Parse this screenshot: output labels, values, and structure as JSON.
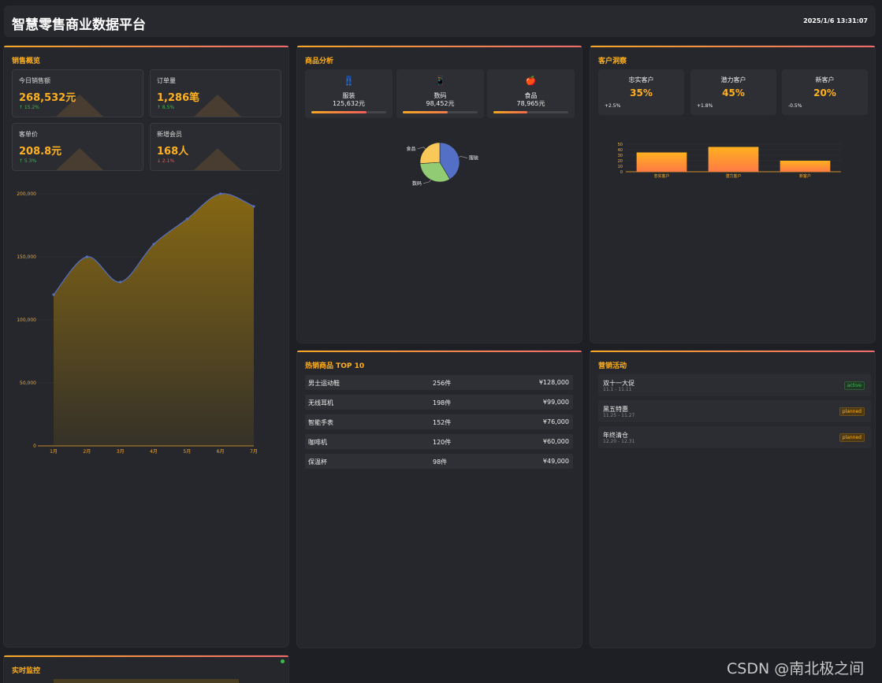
{
  "header": {
    "title": "智慧零售商业数据平台",
    "time": "2025/1/6 13:31:07"
  },
  "sales": {
    "title": "销售概览",
    "cards": [
      {
        "label": "今日销售额",
        "value": "268,532元",
        "change": "↑ 15.2%",
        "dir": "up"
      },
      {
        "label": "订单量",
        "value": "1,286笔",
        "change": "↑ 8.5%",
        "dir": "up"
      },
      {
        "label": "客单价",
        "value": "208.8元",
        "change": "↑ 5.3%",
        "dir": "up"
      },
      {
        "label": "新增会员",
        "value": "168人",
        "change": "↓ 2.1%",
        "dir": "down"
      }
    ]
  },
  "chart_data": [
    {
      "type": "area",
      "categories": [
        "1月",
        "2月",
        "3月",
        "4月",
        "5月",
        "6月",
        "7月"
      ],
      "values": [
        120000,
        150000,
        130000,
        160000,
        180000,
        200000,
        190000
      ],
      "ylim": [
        0,
        200000
      ],
      "yticks": [
        "0",
        "50,000",
        "100,000",
        "150,000",
        "200,000"
      ],
      "grid": true,
      "colors": {
        "line": "#5470c6",
        "fill": "#8a6a12",
        "axis": "#f6a623"
      }
    },
    {
      "type": "pie",
      "labels": [
        "服装",
        "数码",
        "食品"
      ],
      "values": [
        125632,
        98452,
        78965
      ],
      "colors": [
        "#5470c6",
        "#91cc75",
        "#fac858"
      ]
    },
    {
      "type": "bar",
      "categories": [
        "忠实客户",
        "潜力客户",
        "新客户"
      ],
      "values": [
        35,
        45,
        20
      ],
      "ylim": [
        0,
        50
      ],
      "yticks": [
        "0",
        "10",
        "20",
        "30",
        "40",
        "50"
      ],
      "colors": {
        "top": "#ffb01f",
        "bottom": "#ff7a45"
      }
    }
  ],
  "products": {
    "title": "商品分析",
    "items": [
      {
        "icon": "👖",
        "name": "服装",
        "amount": "125,632元",
        "progress": 0.74
      },
      {
        "icon": "📱",
        "name": "数码",
        "amount": "98,452元",
        "progress": 0.6
      },
      {
        "icon": "🍎",
        "name": "食品",
        "amount": "78,965元",
        "progress": 0.45
      }
    ]
  },
  "customers": {
    "title": "客户洞察",
    "items": [
      {
        "name": "忠实客户",
        "pct": "35%",
        "change": "+2.5%"
      },
      {
        "name": "潜力客户",
        "pct": "45%",
        "change": "+1.8%"
      },
      {
        "name": "新客户",
        "pct": "20%",
        "change": "-0.5%"
      }
    ]
  },
  "top10": {
    "title": "热销商品 TOP 10",
    "rows": [
      {
        "name": "男士运动鞋",
        "qty": "256件",
        "amount": "¥128,000"
      },
      {
        "name": "无线耳机",
        "qty": "198件",
        "amount": "¥99,000"
      },
      {
        "name": "智能手表",
        "qty": "152件",
        "amount": "¥76,000"
      },
      {
        "name": "咖啡机",
        "qty": "120件",
        "amount": "¥60,000"
      },
      {
        "name": "保温杯",
        "qty": "98件",
        "amount": "¥49,000"
      }
    ]
  },
  "campaigns": {
    "title": "营销活动",
    "items": [
      {
        "name": "双十一大促",
        "date": "11.1 - 11.11",
        "status": "active"
      },
      {
        "name": "黑五特惠",
        "date": "11.25 - 11.27",
        "status": "planned"
      },
      {
        "name": "年终清仓",
        "date": "12.20 - 12.31",
        "status": "planned"
      }
    ]
  },
  "monitor": {
    "title": "实时监控"
  },
  "watermark": "CSDN @南北极之间"
}
